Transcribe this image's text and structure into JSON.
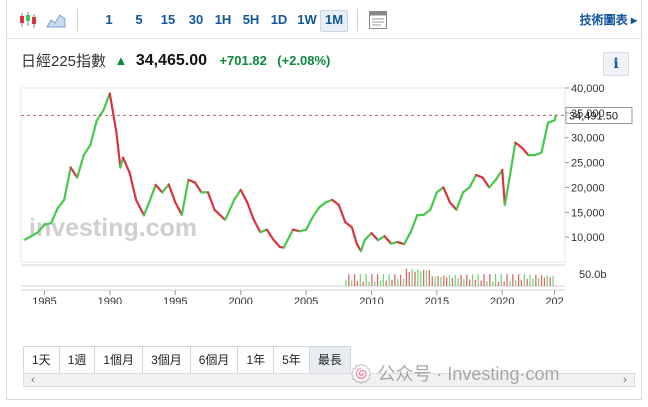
{
  "toolbar": {
    "intervals": [
      "1",
      "5",
      "15",
      "30",
      "1H",
      "5H",
      "1D",
      "1W",
      "1M"
    ],
    "active_interval": "1M",
    "tech_label": "技術圖表 ▸",
    "icons": [
      "candlestick-chart-icon",
      "area-chart-icon",
      "chart-settings-icon"
    ]
  },
  "header": {
    "name": "日經225指數",
    "arrow": "▲",
    "price": "34,465.00",
    "change": "+701.82",
    "change_pct": "(+2.08%)",
    "up_color": "#0b8a3b",
    "info_label": "i"
  },
  "chart_data": {
    "type": "line",
    "title": "",
    "xlabel": "",
    "ylabel": "",
    "x_ticks": [
      "1985",
      "1990",
      "1995",
      "2000",
      "2005",
      "2010",
      "2015",
      "2020",
      "202"
    ],
    "y_ticks": [
      "40,000",
      "35,000",
      "30,000",
      "25,000",
      "20,000",
      "15,000",
      "10,000"
    ],
    "ylim": [
      5000,
      40000
    ],
    "current_price_label": "34,491.50",
    "volume_label": "50.0b",
    "watermark": "investing.com",
    "up_color": "#46c94b",
    "down_color": "#d9333f",
    "series": [
      {
        "x": [
          1983.5,
          1984,
          1984.5,
          1985,
          1985.5,
          1986,
          1986.5,
          1987,
          1987.5,
          1988,
          1988.5,
          1989,
          1989.5,
          1989.99,
          1990.5,
          1990.8,
          1991,
          1991.5,
          1992,
          1992.6,
          1993,
          1993.5,
          1994,
          1994.5,
          1995,
          1995.5,
          1996,
          1996.5,
          1997,
          1997.5,
          1998,
          1998.8,
          1999,
          1999.5,
          2000,
          2000.5,
          2001,
          2001.5,
          2002,
          2002.5,
          2003,
          2003.3,
          2004,
          2004.5,
          2005,
          2005.5,
          2006,
          2006.5,
          2007,
          2007.5,
          2008,
          2008.5,
          2008.9,
          2009.2,
          2009.5,
          2010,
          2010.5,
          2011,
          2011.5,
          2012,
          2012.5,
          2013,
          2013.5,
          2014,
          2014.5,
          2015,
          2015.5,
          2016,
          2016.5,
          2017,
          2017.5,
          2018,
          2018.5,
          2019,
          2019.5,
          2020,
          2020.2,
          2020.6,
          2021,
          2021.5,
          2022,
          2022.5,
          2023,
          2023.5,
          2024,
          2024.1
        ],
        "values": [
          9500,
          10200,
          11000,
          12500,
          12800,
          15800,
          17500,
          24000,
          22000,
          26500,
          28500,
          33500,
          35500,
          38900,
          31000,
          24000,
          26000,
          23000,
          17500,
          14400,
          17000,
          20500,
          19000,
          20600,
          17000,
          14500,
          21500,
          21000,
          19000,
          19000,
          15500,
          13500,
          14500,
          17500,
          19500,
          17000,
          13500,
          11000,
          11500,
          9500,
          8000,
          7900,
          11500,
          11200,
          11500,
          14000,
          16000,
          17000,
          17500,
          16500,
          13000,
          12000,
          8500,
          7200,
          9500,
          10800,
          9400,
          10200,
          8700,
          9000,
          8600,
          11000,
          14400,
          14500,
          15500,
          19000,
          20000,
          17000,
          15500,
          19000,
          20000,
          22500,
          22000,
          20000,
          21500,
          23500,
          16500,
          22500,
          29000,
          28000,
          26500,
          26500,
          27000,
          33000,
          33500,
          34465
        ]
      }
    ]
  },
  "periods": {
    "labels": [
      "1天",
      "1週",
      "1個月",
      "3個月",
      "6個月",
      "1年",
      "5年",
      "最長"
    ],
    "active": "最長"
  },
  "scrollbar": {
    "left": "‹",
    "right": "›"
  },
  "watermark_text": "🍥 公众号 · Investing·com"
}
